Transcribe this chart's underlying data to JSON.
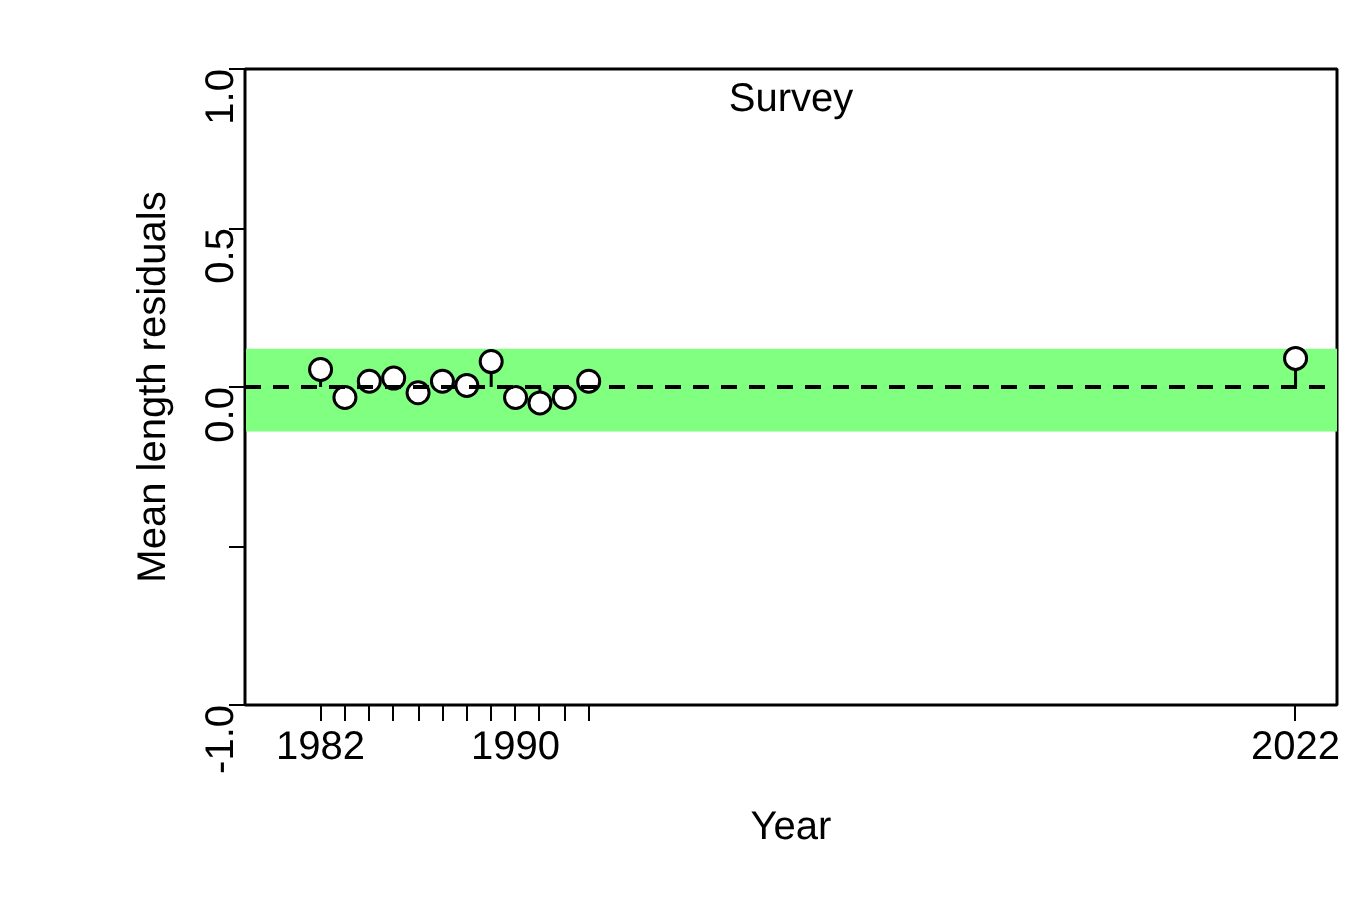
{
  "chart_data": {
    "type": "lollipop",
    "title": "Survey",
    "xlabel": "Year",
    "ylabel": "Mean length residuals",
    "x": [
      1982,
      1983,
      1984,
      1985,
      1986,
      1987,
      1988,
      1989,
      1990,
      1991,
      1992,
      1993,
      2022
    ],
    "series": [
      {
        "color": "#ffffff",
        "values": [
          0.055,
          -0.033,
          0.018,
          0.028,
          -0.018,
          0.018,
          0.005,
          0.08,
          -0.033,
          -0.05,
          -0.033,
          0.018,
          0.09
        ]
      }
    ],
    "xlim": [
      1978.9,
      2023.7
    ],
    "ylim": [
      -1.0,
      1.0
    ],
    "xticks": [
      1982,
      {
        "value": 1983,
        "label": null
      },
      {
        "value": 1984,
        "label": null
      },
      {
        "value": 1985,
        "label": null
      },
      {
        "value": 1986,
        "label": null
      },
      {
        "value": 1987,
        "label": null
      },
      {
        "value": 1988,
        "label": null
      },
      {
        "value": 1989,
        "label": null
      },
      1990,
      {
        "value": 1991,
        "label": null
      },
      {
        "value": 1992,
        "label": null
      },
      {
        "value": 1993,
        "label": null
      },
      2022
    ],
    "yticks": [
      {
        "value": -1.0,
        "label": "-1.0"
      },
      {
        "value": -0.5,
        "label": null
      },
      {
        "value": 0.0,
        "label": "0.0"
      },
      {
        "value": 0.5,
        "label": "0.5"
      },
      {
        "value": 1.0,
        "label": "1.0"
      }
    ],
    "bands": [
      {
        "axis": "y",
        "from": -0.14,
        "to": 0.12,
        "color": "#80ff80"
      }
    ],
    "ref_lines": [
      {
        "axis": "y",
        "value": 0,
        "line_style": "dashed"
      }
    ],
    "marker": "circle",
    "grid": false
  }
}
